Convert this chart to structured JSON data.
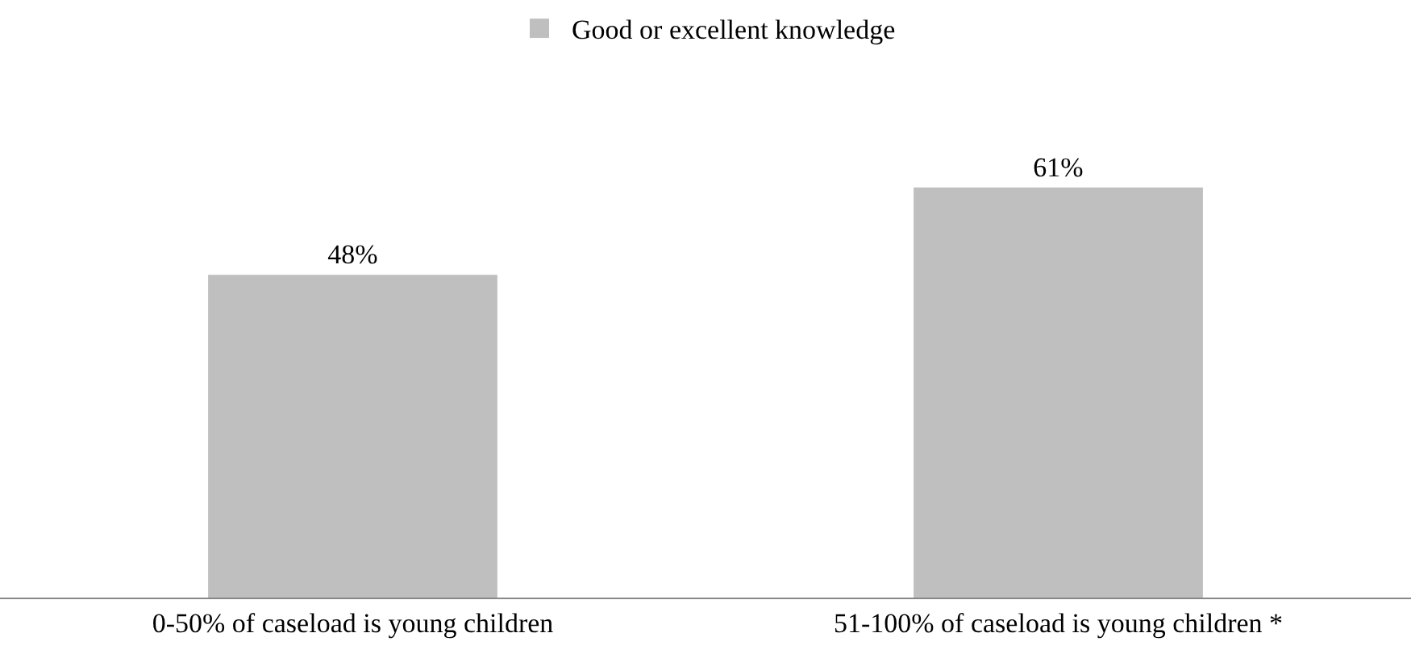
{
  "chart_data": {
    "type": "bar",
    "categories": [
      "0-50% of caseload is young children",
      "51-100% of caseload is young children *"
    ],
    "series": [
      {
        "name": "Good or excellent knowledge",
        "color": "#bfbfbf",
        "values": [
          48,
          61
        ],
        "value_labels": [
          "48%",
          "61%"
        ]
      }
    ],
    "legend": "top",
    "grid": false
  }
}
